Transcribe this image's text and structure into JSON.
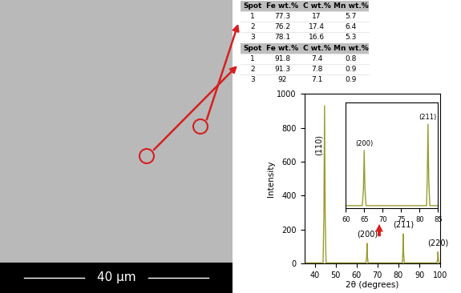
{
  "image": {
    "scale_bar": "40 µm"
  },
  "tables": [
    {
      "header": [
        "Spot",
        "Fe wt.%",
        "C wt.%",
        "Mn wt.%"
      ],
      "rows": [
        [
          1,
          77.3,
          17,
          5.7
        ],
        [
          2,
          76.2,
          17.4,
          6.4
        ],
        [
          3,
          78.1,
          16.6,
          5.3
        ]
      ]
    },
    {
      "header": [
        "Spot",
        "Fe wt.%",
        "C wt.%",
        "Mn wt.%"
      ],
      "rows": [
        [
          1,
          91.8,
          7.4,
          0.8
        ],
        [
          2,
          91.3,
          7.8,
          0.9
        ],
        [
          3,
          92,
          7.1,
          0.9
        ]
      ]
    }
  ],
  "chart_data": [
    {
      "type": "line",
      "x_label": "2θ (degrees)",
      "y_label": "Intensity",
      "x": [
        35,
        44.0,
        44.4,
        44.7,
        45.0,
        45.4,
        64.5,
        64.8,
        65.0,
        65.2,
        65.5,
        81.9,
        82.1,
        82.3,
        82.5,
        82.8,
        98.4,
        98.7,
        98.9,
        99.1,
        99.4,
        100
      ],
      "values": [
        5,
        5,
        300,
        930,
        300,
        5,
        5,
        40,
        120,
        40,
        5,
        5,
        60,
        175,
        60,
        5,
        5,
        25,
        70,
        25,
        5,
        5
      ],
      "color": "#9b9b30",
      "xlim": [
        35,
        100
      ],
      "ylim": [
        0,
        1000
      ],
      "xticks": [
        40,
        50,
        60,
        70,
        80,
        90,
        100
      ],
      "yticks": [
        0,
        200,
        400,
        600,
        800,
        1000
      ],
      "annotations": [
        {
          "text": "(110)",
          "x": 44.7
        },
        {
          "text": "(200)",
          "x": 65.0
        },
        {
          "text": "(211)",
          "x": 82.3
        },
        {
          "text": "(220)",
          "x": 98.9
        }
      ]
    },
    {
      "type": "line",
      "x": [
        60,
        64.5,
        64.8,
        65.0,
        65.2,
        65.5,
        81.9,
        82.1,
        82.3,
        82.5,
        82.8,
        85
      ],
      "values": [
        5,
        5,
        40,
        120,
        40,
        5,
        5,
        60,
        175,
        60,
        5,
        5
      ],
      "color": "#9b9b30",
      "xlim": [
        60,
        85
      ],
      "ylim": [
        0,
        220
      ],
      "xticks": [
        60,
        65,
        70,
        75,
        80,
        85
      ],
      "tick_labels": "x",
      "annotations": [
        {
          "text": "(200)",
          "x": 65.0
        },
        {
          "text": "(211)",
          "x": 82.3
        }
      ]
    }
  ]
}
